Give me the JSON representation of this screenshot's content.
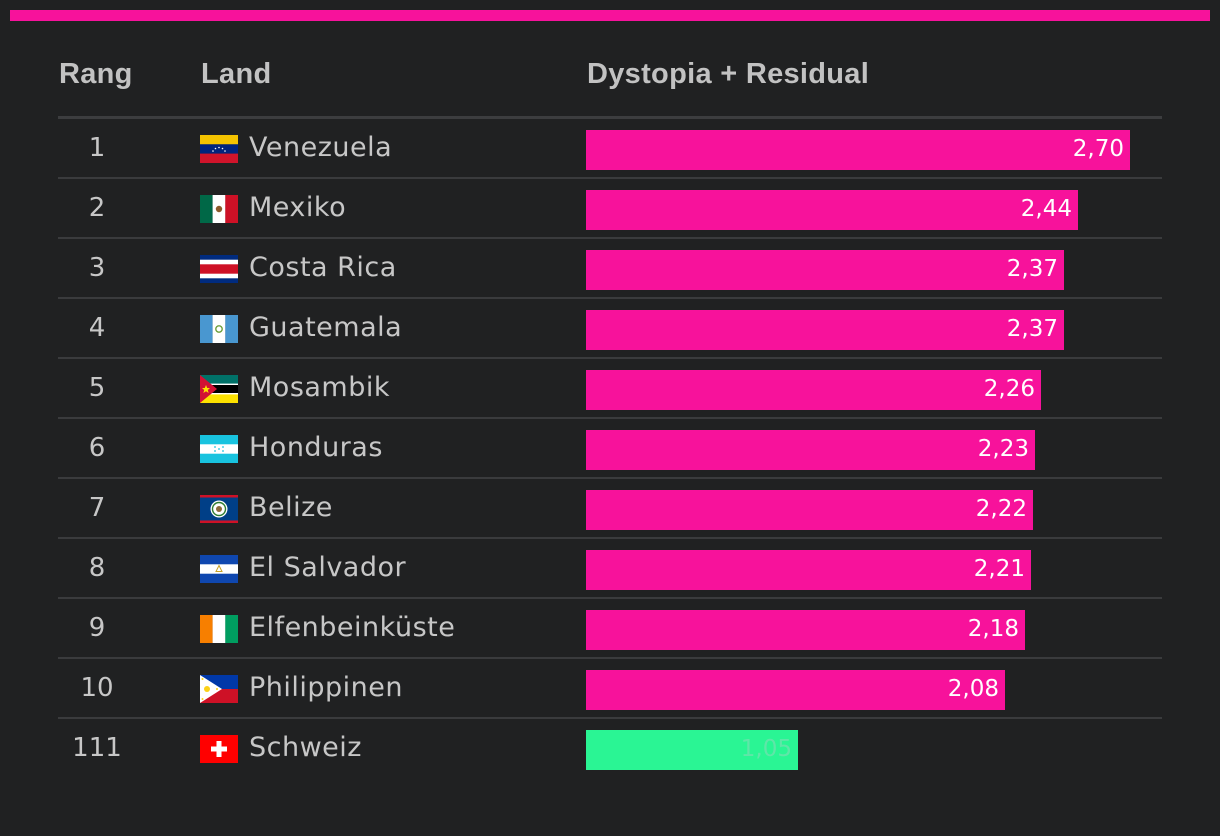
{
  "colors": {
    "accent": "#f7129b",
    "highlight": "#2af594",
    "background": "#202122",
    "text": "#c7c7c7"
  },
  "header": {
    "rank": "Rang",
    "country": "Land",
    "value": "Dystopia + Residual"
  },
  "chart_data": {
    "type": "bar",
    "orientation": "horizontal",
    "title": "",
    "columns": [
      "Rang",
      "Land",
      "Dystopia + Residual"
    ],
    "categories": [
      "Venezuela",
      "Mexiko",
      "Costa Rica",
      "Guatemala",
      "Mosambik",
      "Honduras",
      "Belize",
      "El Salvador",
      "Elfenbeinküste",
      "Philippinen",
      "Schweiz"
    ],
    "ranks": [
      "1",
      "2",
      "3",
      "4",
      "5",
      "6",
      "7",
      "8",
      "9",
      "10",
      "111"
    ],
    "values": [
      2.7,
      2.44,
      2.37,
      2.37,
      2.26,
      2.23,
      2.22,
      2.21,
      2.18,
      2.08,
      1.05
    ],
    "labels": [
      "2,70",
      "2,44",
      "2,37",
      "2,37",
      "2,26",
      "2,23",
      "2,22",
      "2,21",
      "2,18",
      "2,08",
      "1,05"
    ],
    "flags": [
      "venezuela-flag",
      "mexico-flag",
      "costa-rica-flag",
      "guatemala-flag",
      "mozambique-flag",
      "honduras-flag",
      "belize-flag",
      "el-salvador-flag",
      "ivory-coast-flag",
      "philippines-flag",
      "switzerland-flag"
    ],
    "highlighted": [
      "Schweiz"
    ],
    "xlim": [
      0,
      2.7
    ],
    "grid": false,
    "legend": "none"
  }
}
